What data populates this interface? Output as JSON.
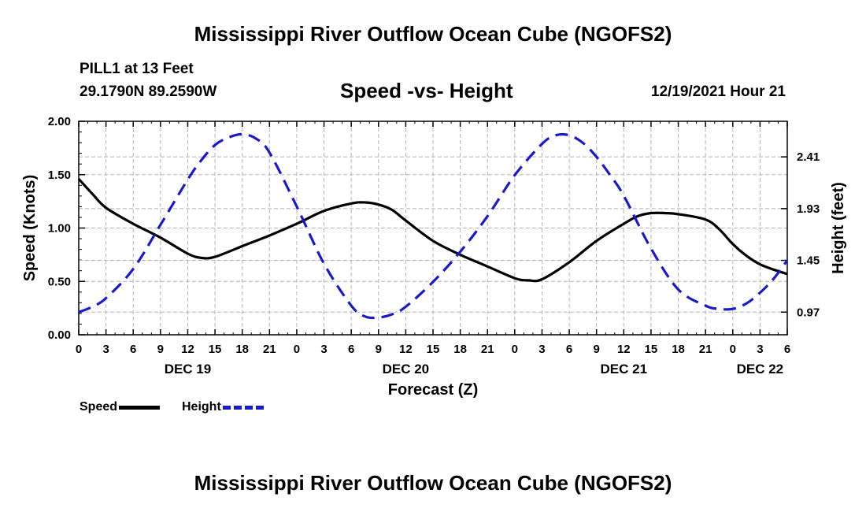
{
  "header": {
    "title": "Mississippi River Outflow Ocean Cube (NGOFS2)",
    "station": "PILL1 at 13 Feet",
    "coordinates": "29.1790N  89.2590W",
    "subtitle": "Speed -vs- Height",
    "datetime": "12/19/2021 Hour 21"
  },
  "footer": {
    "title": "Mississippi River Outflow Ocean Cube (NGOFS2)"
  },
  "legend": {
    "speed_label": "Speed",
    "height_label": "Height"
  },
  "colors": {
    "speed": "#000000",
    "height": "#1a1acc",
    "grid": "#b4b4b4"
  },
  "chart_data": {
    "type": "line",
    "title": "Speed -vs- Height",
    "xlabel": "Forecast (Z)",
    "ylabel": "Speed (Knots)",
    "y2label": "Height (feet)",
    "xlim": [
      0,
      78
    ],
    "ylim": [
      0,
      2.0
    ],
    "y2lim": [
      0.76,
      2.74
    ],
    "x_ticks": [
      0,
      3,
      6,
      9,
      12,
      15,
      18,
      21,
      24,
      27,
      30,
      33,
      36,
      39,
      42,
      45,
      48,
      51,
      54,
      57,
      60,
      63,
      66,
      69,
      72,
      75,
      78
    ],
    "x_tick_labels": [
      "0",
      "3",
      "6",
      "9",
      "12",
      "15",
      "18",
      "21",
      "0",
      "3",
      "6",
      "9",
      "12",
      "15",
      "18",
      "21",
      "0",
      "3",
      "6",
      "9",
      "12",
      "15",
      "18",
      "21",
      "0",
      "3",
      "6"
    ],
    "day_labels": [
      {
        "x": 12,
        "label": "DEC 19"
      },
      {
        "x": 36,
        "label": "DEC 20"
      },
      {
        "x": 60,
        "label": "DEC 21"
      },
      {
        "x": 75,
        "label": "DEC 22"
      }
    ],
    "y_ticks": [
      0.0,
      0.5,
      1.0,
      1.5,
      2.0
    ],
    "y_tick_labels": [
      "0.00",
      "0.50",
      "1.00",
      "1.50",
      "2.00"
    ],
    "y2_ticks": [
      0.97,
      1.45,
      1.93,
      2.41
    ],
    "y2_tick_labels": [
      "0.97",
      "1.45",
      "1.93",
      "2.41"
    ],
    "series": [
      {
        "name": "Speed",
        "axis": "left",
        "style": "solid",
        "x": [
          0,
          1.5,
          3,
          6,
          9,
          12,
          13.5,
          15,
          18,
          21,
          24,
          27,
          30,
          31.5,
          33,
          34.5,
          36,
          39,
          42,
          45,
          48,
          49.5,
          51,
          54,
          57,
          60,
          61.5,
          63,
          64.5,
          66,
          69,
          70.5,
          72,
          73.5,
          75,
          76.5,
          78
        ],
        "values": [
          1.46,
          1.32,
          1.19,
          1.04,
          0.91,
          0.76,
          0.72,
          0.73,
          0.83,
          0.93,
          1.04,
          1.16,
          1.23,
          1.24,
          1.22,
          1.17,
          1.07,
          0.88,
          0.75,
          0.64,
          0.53,
          0.51,
          0.52,
          0.68,
          0.88,
          1.04,
          1.11,
          1.14,
          1.14,
          1.13,
          1.08,
          0.99,
          0.85,
          0.74,
          0.66,
          0.61,
          0.57
        ]
      },
      {
        "name": "Height",
        "axis": "right",
        "style": "dashed",
        "x": [
          0,
          1.5,
          3,
          6,
          9,
          12,
          13.5,
          15,
          16.5,
          18,
          19.5,
          21,
          24,
          27,
          30,
          31.5,
          33,
          34.5,
          36,
          39,
          42,
          45,
          48,
          51,
          52.5,
          54,
          55.5,
          57,
          58.5,
          60,
          63,
          66,
          69,
          70.5,
          72,
          73.5,
          75,
          76.5,
          78
        ],
        "values": [
          0.97,
          1.02,
          1.1,
          1.37,
          1.78,
          2.2,
          2.38,
          2.52,
          2.59,
          2.62,
          2.58,
          2.45,
          1.95,
          1.42,
          1.03,
          0.93,
          0.92,
          0.95,
          1.02,
          1.25,
          1.53,
          1.86,
          2.24,
          2.53,
          2.61,
          2.61,
          2.54,
          2.41,
          2.24,
          2.05,
          1.56,
          1.18,
          1.03,
          1.0,
          1.0,
          1.05,
          1.15,
          1.28,
          1.45
        ]
      }
    ]
  }
}
